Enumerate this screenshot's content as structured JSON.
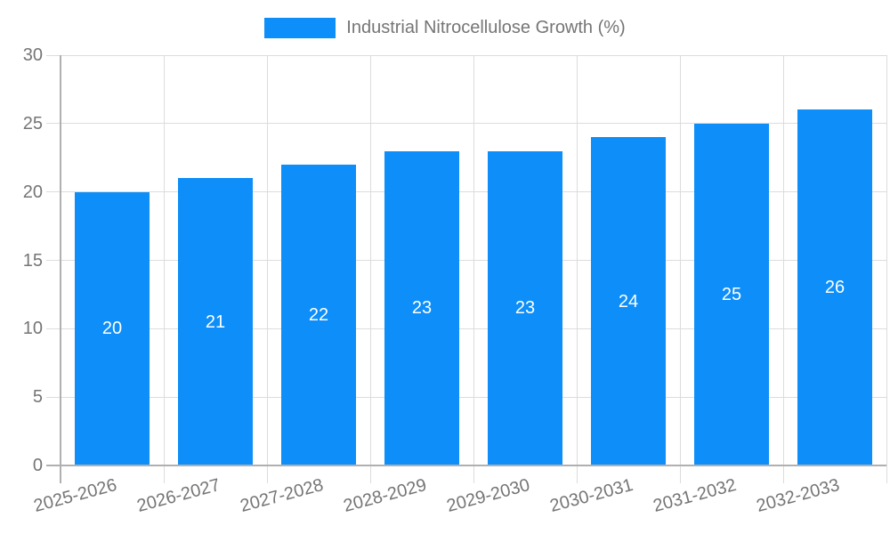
{
  "chart_data": {
    "type": "bar",
    "series_name": "Industrial Nitrocellulose Growth (%)",
    "categories": [
      "2025-2026",
      "2026-2027",
      "2027-2028",
      "2028-2029",
      "2029-2030",
      "2030-2031",
      "2031-2032",
      "2032-2033"
    ],
    "values": [
      20,
      21,
      22,
      23,
      23,
      24,
      25,
      26
    ],
    "bar_value_labels": [
      "20",
      "21",
      "22",
      "23",
      "23",
      "24",
      "25",
      "26"
    ],
    "title": "",
    "xlabel": "",
    "ylabel": "",
    "ylim": [
      0,
      30
    ],
    "yticks": [
      0,
      5,
      10,
      15,
      20,
      25,
      30
    ],
    "ytick_labels": [
      "0",
      "5",
      "10",
      "15",
      "20",
      "25",
      "30"
    ],
    "grid": true,
    "legend_position": "top-center",
    "x_label_rotation_deg": -15,
    "colors": {
      "bar": "#0d8ef9",
      "bar_label": "#ffffff",
      "axis": "#b0b0b0",
      "grid": "#dcdcdc",
      "text": "#757575",
      "background": "#ffffff"
    }
  }
}
